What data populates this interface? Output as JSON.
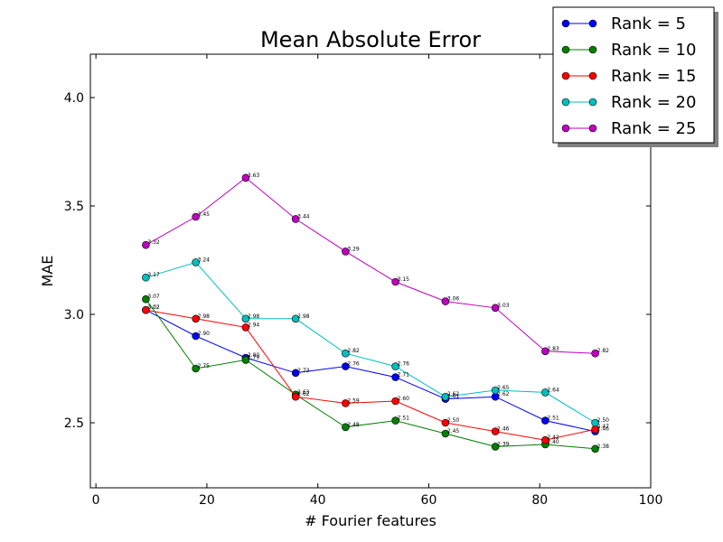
{
  "chart_data": {
    "type": "line",
    "title": "Mean Absolute Error",
    "xlabel": "# Fourier features",
    "ylabel": "MAE",
    "xlim": [
      -1,
      100
    ],
    "ylim": [
      2.2,
      4.2
    ],
    "x_ticks": [
      0,
      20,
      40,
      60,
      80,
      100
    ],
    "x_tick_labels": [
      "0",
      "20",
      "40",
      "60",
      "80",
      "100"
    ],
    "y_ticks": [
      2.5,
      3.0,
      3.5,
      4.0
    ],
    "y_tick_labels": [
      "2.5",
      "3.0",
      "3.5",
      "4.0"
    ],
    "grid": false,
    "legend_position": "top-right",
    "x": [
      9,
      18,
      27,
      36,
      45,
      54,
      63,
      72,
      81,
      90
    ],
    "series": [
      {
        "name": "Rank = 5",
        "color": "#0000ff",
        "values": [
          3.02,
          2.9,
          2.8,
          2.73,
          2.76,
          2.71,
          2.61,
          2.62,
          2.51,
          2.46
        ],
        "labels": [
          "3.02",
          "2.90",
          "2.80",
          "2.73",
          "2.76",
          "2.71",
          "2.61",
          "2.62",
          "2.51",
          "2.46"
        ]
      },
      {
        "name": "Rank = 10",
        "color": "#008000",
        "values": [
          3.07,
          2.75,
          2.79,
          2.63,
          2.48,
          2.51,
          2.45,
          2.39,
          2.4,
          2.38
        ],
        "labels": [
          "3.07",
          "2.75",
          "2.79",
          "2.63",
          "2.48",
          "2.51",
          "2.45",
          "2.39",
          "2.40",
          "2.38"
        ]
      },
      {
        "name": "Rank = 15",
        "color": "#ff0000",
        "values": [
          3.02,
          2.98,
          2.94,
          2.62,
          2.59,
          2.6,
          2.5,
          2.46,
          2.42,
          2.47
        ],
        "labels": [
          "3.02",
          "2.98",
          "2.94",
          "2.62",
          "2.59",
          "2.60",
          "2.50",
          "2.46",
          "2.42",
          "2.47"
        ]
      },
      {
        "name": "Rank = 20",
        "color": "#00bfbf",
        "values": [
          3.17,
          3.24,
          2.98,
          2.98,
          2.82,
          2.76,
          2.62,
          2.65,
          2.64,
          2.5
        ],
        "labels": [
          "3.17",
          "3.24",
          "2.98",
          "2.98",
          "2.82",
          "2.76",
          "2.62",
          "2.65",
          "2.64",
          "2.50"
        ]
      },
      {
        "name": "Rank = 25",
        "color": "#bf00bf",
        "values": [
          3.32,
          3.45,
          3.63,
          3.44,
          3.29,
          3.15,
          3.06,
          3.03,
          2.83,
          2.82
        ],
        "labels": [
          "3.32",
          "3.45",
          "3.63",
          "3.44",
          "3.29",
          "3.15",
          "3.06",
          "3.03",
          "2.83",
          "2.82"
        ]
      }
    ]
  }
}
